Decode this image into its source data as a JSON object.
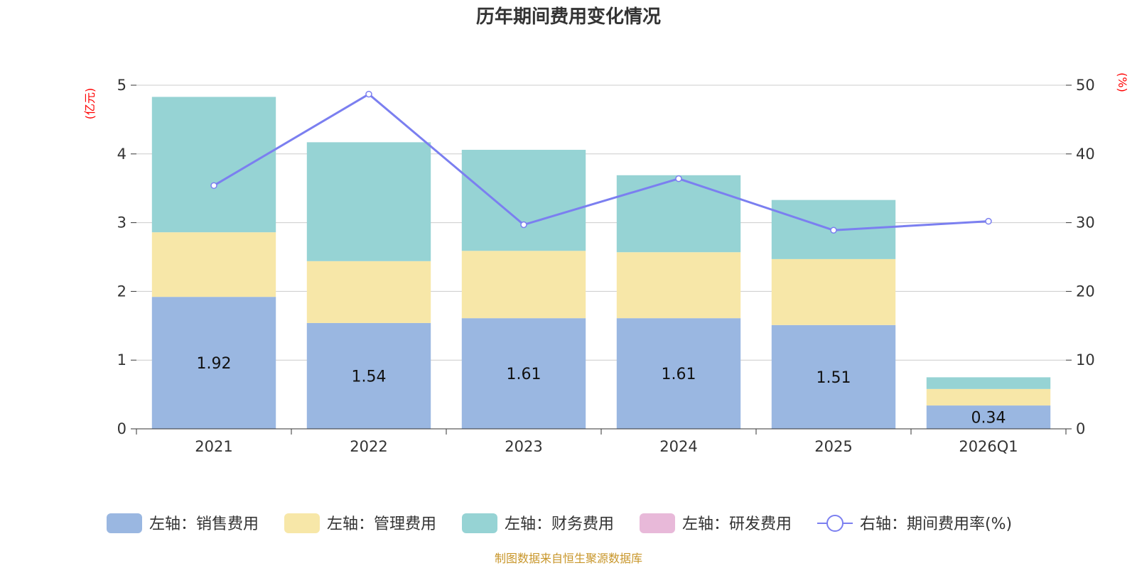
{
  "chart_data": {
    "type": "bar",
    "title": "历年期间费用变化情况",
    "categories": [
      "2021",
      "2022",
      "2023",
      "2024",
      "2025",
      "2026Q1"
    ],
    "y_left": {
      "unit": "(亿元)",
      "ticks": [
        0,
        1,
        2,
        3,
        4,
        5
      ],
      "range": [
        0,
        5
      ]
    },
    "y_right": {
      "unit": "(%)",
      "ticks": [
        0,
        10,
        20,
        30,
        40,
        50
      ],
      "range": [
        0,
        50
      ]
    },
    "series": [
      {
        "name": "左轴：销售费用",
        "type": "bar",
        "stack": true,
        "axis": "left",
        "color": "#9ab7e1",
        "values": [
          1.92,
          1.54,
          1.61,
          1.61,
          1.51,
          0.34
        ],
        "labels": [
          "1.92",
          "1.54",
          "1.61",
          "1.61",
          "1.51",
          "0.34"
        ]
      },
      {
        "name": "左轴：管理费用",
        "type": "bar",
        "stack": true,
        "axis": "left",
        "color": "#f7e7a8",
        "values": [
          0.94,
          0.9,
          0.98,
          0.96,
          0.96,
          0.24
        ]
      },
      {
        "name": "左轴：财务费用",
        "type": "bar",
        "stack": true,
        "axis": "left",
        "color": "#96d3d4",
        "values": [
          1.97,
          1.73,
          1.47,
          1.12,
          0.86,
          0.17
        ]
      },
      {
        "name": "左轴：研发费用",
        "type": "bar",
        "stack": true,
        "axis": "left",
        "color": "#e8b9d9",
        "values": [
          0,
          0,
          0,
          0,
          0,
          0
        ]
      },
      {
        "name": "右轴：期间费用率(%)",
        "type": "line",
        "axis": "right",
        "color": "#7b7ff0",
        "values": [
          35.4,
          48.7,
          29.7,
          36.4,
          28.9,
          30.2
        ]
      }
    ],
    "legend_position": "bottom",
    "grid": true,
    "source_note": "制图数据来自恒生聚源数据库"
  }
}
